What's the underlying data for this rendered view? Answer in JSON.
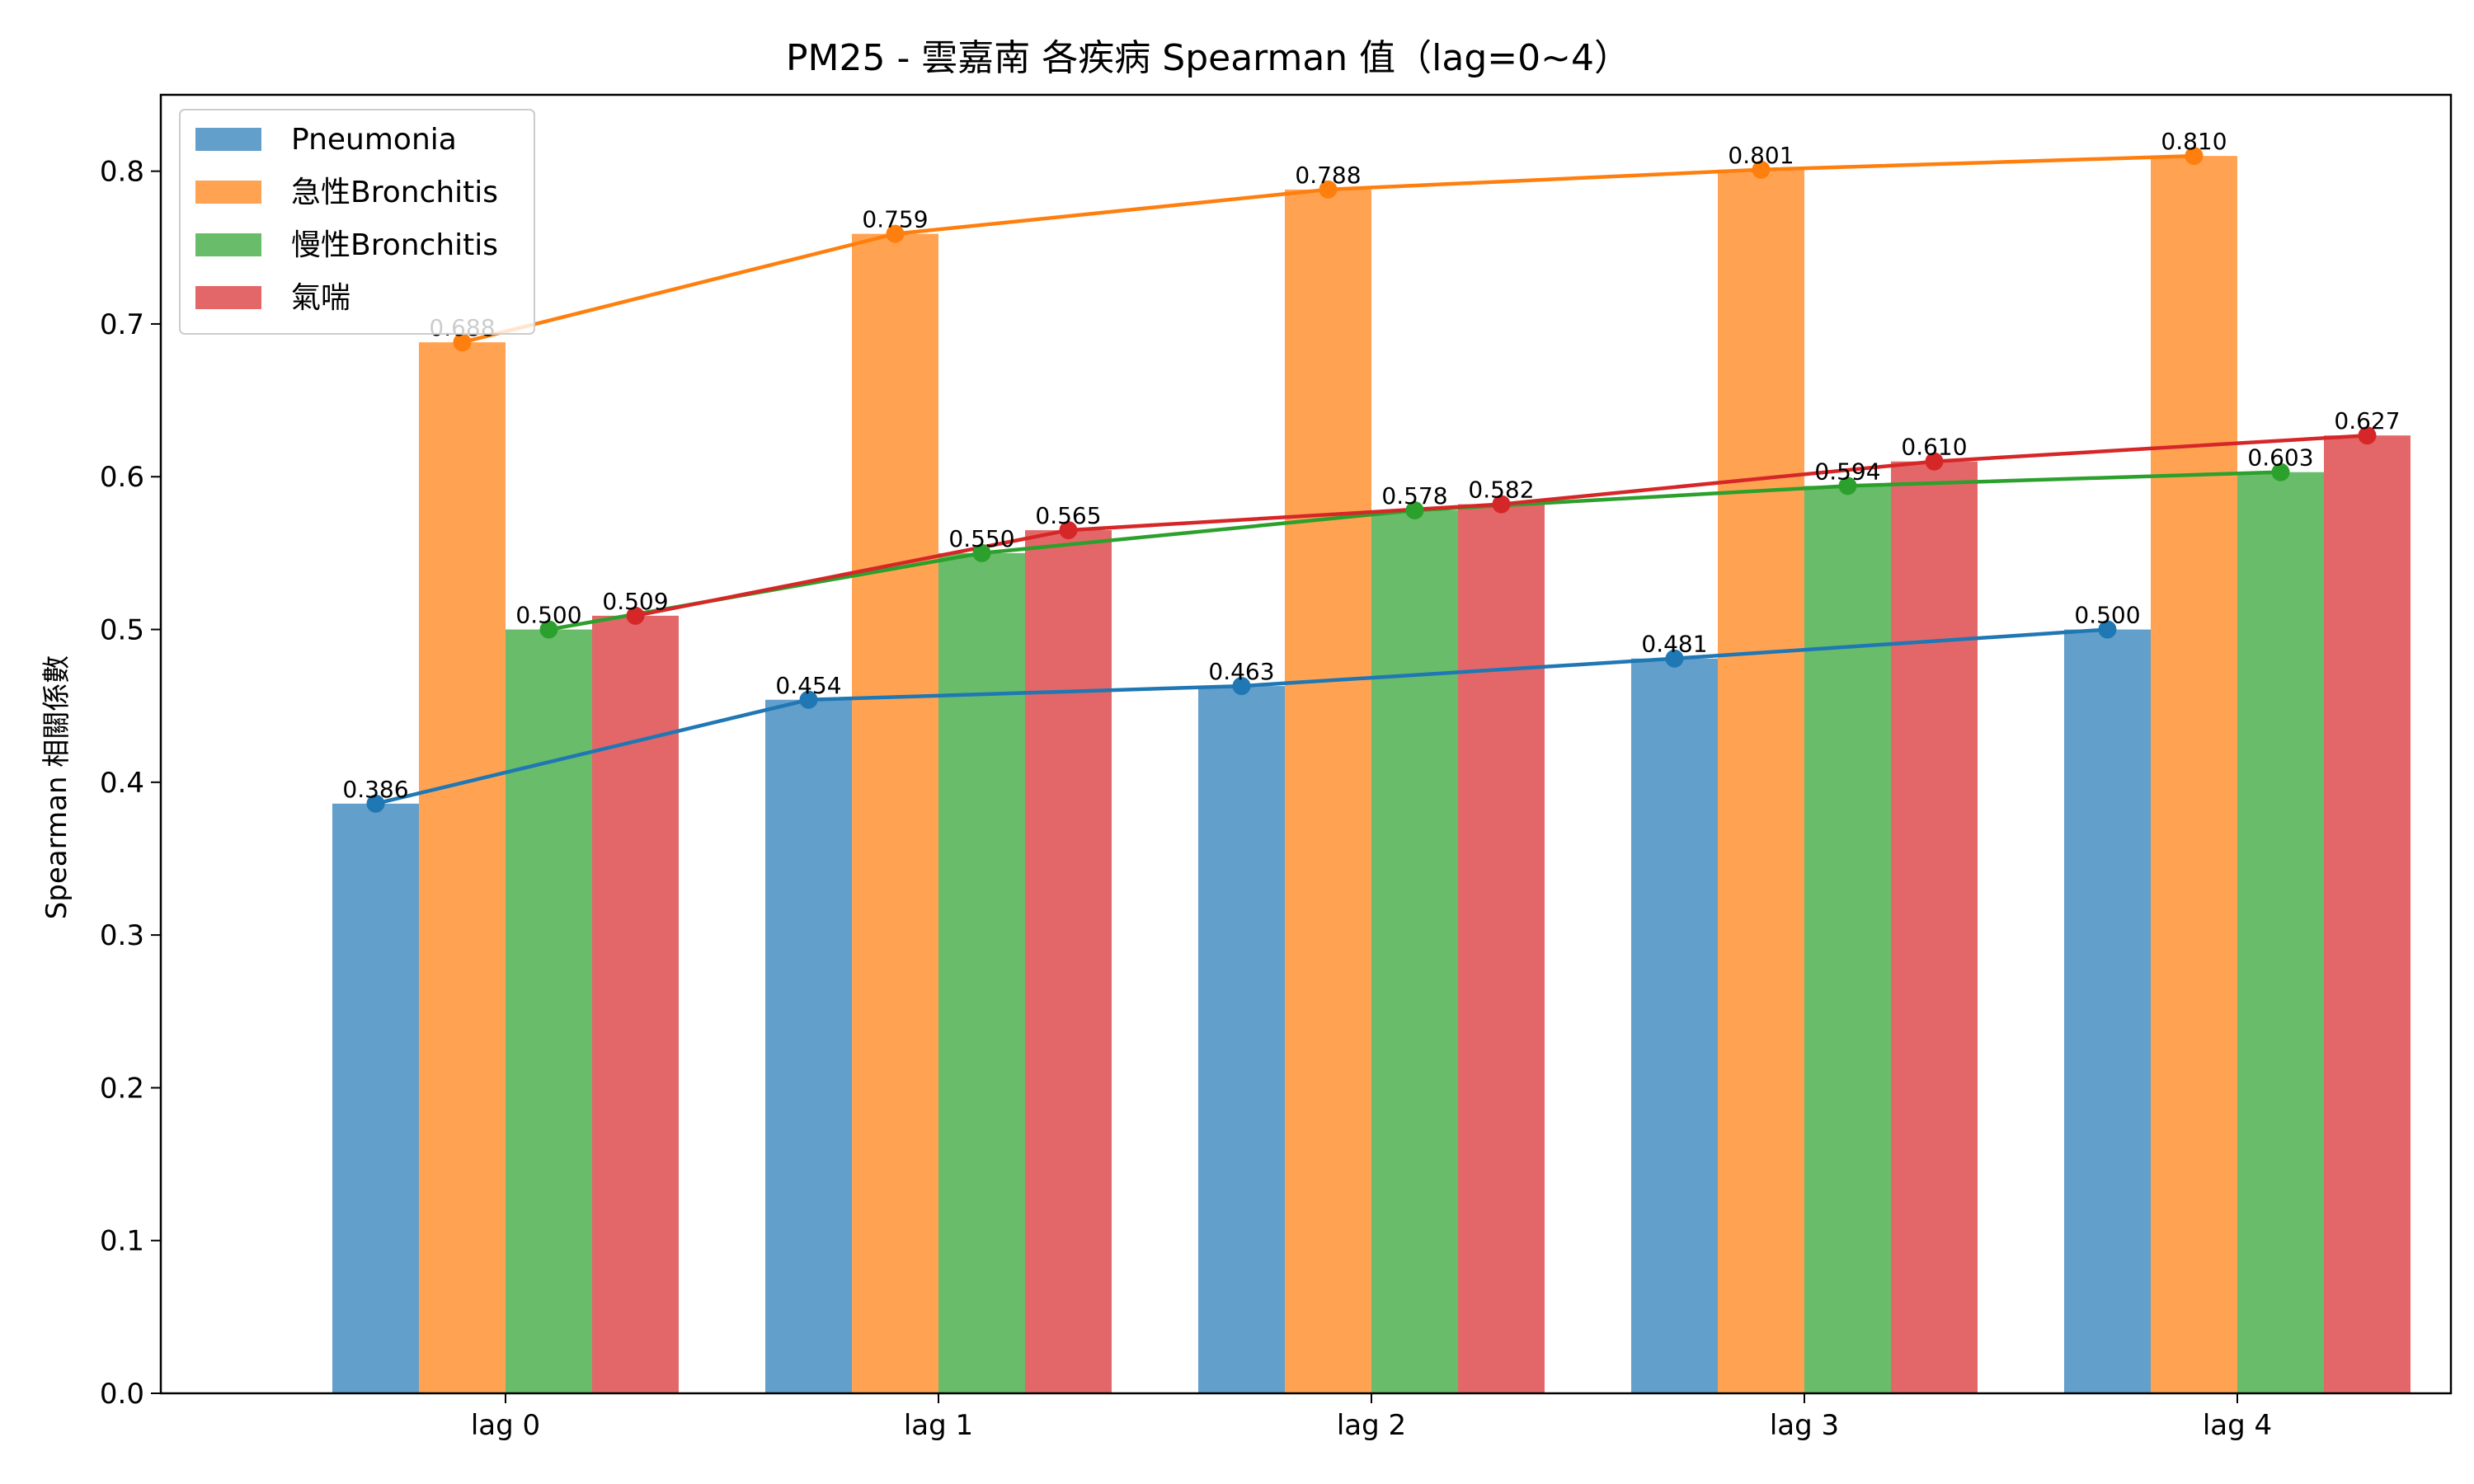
{
  "chart_data": {
    "type": "bar",
    "title": "PM25 - 雲嘉南 各疾病 Spearman 值（lag=0~4）",
    "xlabel": "",
    "ylabel": "Spearman 相關係數",
    "categories": [
      "lag 0",
      "lag 1",
      "lag 2",
      "lag 3",
      "lag 4"
    ],
    "ylim": [
      0,
      0.85
    ],
    "yticks": [
      "0.0",
      "0.1",
      "0.2",
      "0.3",
      "0.4",
      "0.5",
      "0.6",
      "0.7",
      "0.8"
    ],
    "grid": false,
    "legend_position": "top-left",
    "overlay": "line with markers per series",
    "series": [
      {
        "name": "Pneumonia",
        "values": [
          0.386,
          0.454,
          0.463,
          0.481,
          0.5
        ],
        "labels": [
          "0.386",
          "0.454",
          "0.463",
          "0.481",
          "0.500"
        ],
        "bar_color": "#639fcb",
        "line_color": "#1f77b4"
      },
      {
        "name": "急性Bronchitis",
        "values": [
          0.688,
          0.759,
          0.788,
          0.801,
          0.81
        ],
        "labels": [
          "0.688",
          "0.759",
          "0.788",
          "0.801",
          "0.810"
        ],
        "bar_color": "#ffa352",
        "line_color": "#ff7f0e"
      },
      {
        "name": "慢性Bronchitis",
        "values": [
          0.5,
          0.55,
          0.578,
          0.594,
          0.603
        ],
        "labels": [
          "0.500",
          "0.550",
          "0.578",
          "0.594",
          "0.603"
        ],
        "bar_color": "#69bc69",
        "line_color": "#2ca02c"
      },
      {
        "name": "氣喘",
        "values": [
          0.509,
          0.565,
          0.582,
          0.61,
          0.627
        ],
        "labels": [
          "0.509",
          "0.565",
          "0.582",
          "0.610",
          "0.627"
        ],
        "bar_color": "#e36768",
        "line_color": "#d62728"
      }
    ]
  }
}
